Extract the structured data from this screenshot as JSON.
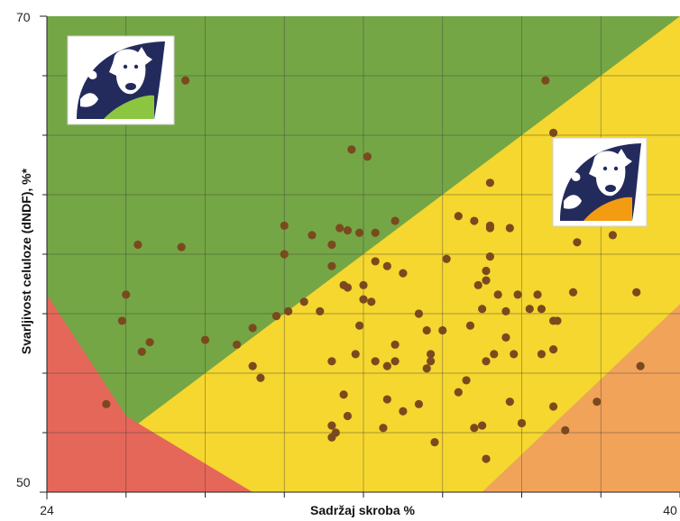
{
  "chart_data": {
    "type": "scatter",
    "title": "",
    "xlabel": "Sadržaj skroba %",
    "ylabel": "Svarljivost celuloze (dNDF), %*",
    "xlim": [
      24,
      40
    ],
    "ylim": [
      50,
      70
    ],
    "x_tick_labels": [
      "24",
      "40"
    ],
    "y_tick_labels": [
      "50",
      "70"
    ],
    "grid": true,
    "zone_colors": {
      "green": "#74a645",
      "yellow": "#f5d72f",
      "red": "#e5675a",
      "orange": "#f2a35a"
    },
    "icons": [
      "cow-logo-green-icon",
      "cow-logo-orange-icon"
    ],
    "points": [
      {
        "x": 25.5,
        "y": 53.7
      },
      {
        "x": 25.9,
        "y": 57.2
      },
      {
        "x": 26.0,
        "y": 58.3
      },
      {
        "x": 26.3,
        "y": 60.4
      },
      {
        "x": 26.4,
        "y": 55.9
      },
      {
        "x": 26.6,
        "y": 56.3
      },
      {
        "x": 27.4,
        "y": 60.3
      },
      {
        "x": 27.5,
        "y": 67.3
      },
      {
        "x": 28.0,
        "y": 56.4
      },
      {
        "x": 28.8,
        "y": 56.2
      },
      {
        "x": 29.2,
        "y": 56.9
      },
      {
        "x": 29.2,
        "y": 55.3
      },
      {
        "x": 29.4,
        "y": 54.8
      },
      {
        "x": 29.8,
        "y": 57.4
      },
      {
        "x": 30.0,
        "y": 60.0
      },
      {
        "x": 30.0,
        "y": 61.2
      },
      {
        "x": 30.1,
        "y": 57.6
      },
      {
        "x": 30.5,
        "y": 58.0
      },
      {
        "x": 30.9,
        "y": 57.6
      },
      {
        "x": 31.2,
        "y": 59.5
      },
      {
        "x": 31.2,
        "y": 55.5
      },
      {
        "x": 31.3,
        "y": 52.5
      },
      {
        "x": 31.2,
        "y": 52.8
      },
      {
        "x": 31.5,
        "y": 58.7
      },
      {
        "x": 31.6,
        "y": 53.2
      },
      {
        "x": 31.5,
        "y": 54.1
      },
      {
        "x": 31.6,
        "y": 58.6
      },
      {
        "x": 31.6,
        "y": 61.0
      },
      {
        "x": 31.8,
        "y": 55.8
      },
      {
        "x": 31.9,
        "y": 60.9
      },
      {
        "x": 31.2,
        "y": 52.3
      },
      {
        "x": 31.7,
        "y": 64.4
      },
      {
        "x": 31.9,
        "y": 57.0
      },
      {
        "x": 32.0,
        "y": 58.1
      },
      {
        "x": 32.1,
        "y": 64.1
      },
      {
        "x": 32.2,
        "y": 58.0
      },
      {
        "x": 32.3,
        "y": 55.5
      },
      {
        "x": 32.5,
        "y": 52.7
      },
      {
        "x": 32.6,
        "y": 59.5
      },
      {
        "x": 32.8,
        "y": 56.2
      },
      {
        "x": 32.3,
        "y": 60.9
      },
      {
        "x": 32.0,
        "y": 58.7
      },
      {
        "x": 33.0,
        "y": 59.2
      },
      {
        "x": 32.3,
        "y": 59.7
      },
      {
        "x": 32.8,
        "y": 55.5
      },
      {
        "x": 32.8,
        "y": 61.4
      },
      {
        "x": 31.2,
        "y": 60.4
      },
      {
        "x": 31.4,
        "y": 61.1
      },
      {
        "x": 30.7,
        "y": 60.8
      },
      {
        "x": 32.6,
        "y": 55.3
      },
      {
        "x": 32.6,
        "y": 53.9
      },
      {
        "x": 33.6,
        "y": 55.2
      },
      {
        "x": 33.8,
        "y": 52.1
      },
      {
        "x": 33.7,
        "y": 55.8
      },
      {
        "x": 34.0,
        "y": 56.8
      },
      {
        "x": 34.1,
        "y": 59.8
      },
      {
        "x": 34.6,
        "y": 54.7
      },
      {
        "x": 33.4,
        "y": 53.7
      },
      {
        "x": 33.0,
        "y": 53.4
      },
      {
        "x": 34.4,
        "y": 54.2
      },
      {
        "x": 33.4,
        "y": 57.5
      },
      {
        "x": 33.6,
        "y": 56.8
      },
      {
        "x": 34.8,
        "y": 52.7
      },
      {
        "x": 33.7,
        "y": 55.5
      },
      {
        "x": 34.4,
        "y": 61.6
      },
      {
        "x": 34.7,
        "y": 57.0
      },
      {
        "x": 34.9,
        "y": 58.7
      },
      {
        "x": 35.0,
        "y": 57.7
      },
      {
        "x": 35.1,
        "y": 55.5
      },
      {
        "x": 35.2,
        "y": 63.0
      },
      {
        "x": 35.1,
        "y": 59.3
      },
      {
        "x": 35.1,
        "y": 58.9
      },
      {
        "x": 35.2,
        "y": 61.2
      },
      {
        "x": 35.3,
        "y": 55.8
      },
      {
        "x": 35.6,
        "y": 56.5
      },
      {
        "x": 35.2,
        "y": 59.9
      },
      {
        "x": 35.2,
        "y": 61.1
      },
      {
        "x": 35.6,
        "y": 57.6
      },
      {
        "x": 35.7,
        "y": 61.1
      },
      {
        "x": 35.4,
        "y": 58.3
      },
      {
        "x": 35.9,
        "y": 58.3
      },
      {
        "x": 35.8,
        "y": 55.8
      },
      {
        "x": 35.7,
        "y": 53.8
      },
      {
        "x": 36.0,
        "y": 52.9
      },
      {
        "x": 35.1,
        "y": 51.4
      },
      {
        "x": 34.8,
        "y": 61.4
      },
      {
        "x": 36.2,
        "y": 57.7
      },
      {
        "x": 36.4,
        "y": 58.3
      },
      {
        "x": 36.5,
        "y": 57.7
      },
      {
        "x": 36.8,
        "y": 53.6
      },
      {
        "x": 36.5,
        "y": 55.8
      },
      {
        "x": 36.8,
        "y": 57.2
      },
      {
        "x": 36.8,
        "y": 65.1
      },
      {
        "x": 36.6,
        "y": 67.3
      },
      {
        "x": 36.9,
        "y": 57.2
      },
      {
        "x": 36.8,
        "y": 56.0
      },
      {
        "x": 37.0,
        "y": 61.6
      },
      {
        "x": 37.1,
        "y": 62.1
      },
      {
        "x": 37.4,
        "y": 60.5
      },
      {
        "x": 37.1,
        "y": 52.6
      },
      {
        "x": 37.0,
        "y": 64.6
      },
      {
        "x": 37.9,
        "y": 53.8
      },
      {
        "x": 38.1,
        "y": 64.3
      },
      {
        "x": 38.3,
        "y": 60.8
      },
      {
        "x": 38.9,
        "y": 58.4
      },
      {
        "x": 39.0,
        "y": 55.3
      },
      {
        "x": 37.3,
        "y": 58.4
      },
      {
        "x": 35.0,
        "y": 52.8
      }
    ]
  }
}
